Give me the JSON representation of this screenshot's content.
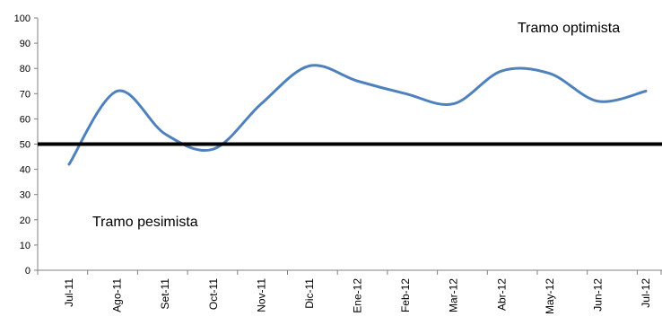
{
  "chart_data": {
    "type": "line",
    "title": "",
    "xlabel": "",
    "ylabel": "",
    "categories": [
      "Jul-11",
      "Ago-11",
      "Set-11",
      "Oct-11",
      "Nov-11",
      "Dic-11",
      "Ene-12",
      "Feb-12",
      "Mar-12",
      "Abr-12",
      "May-12",
      "Jun-12",
      "Jul-12"
    ],
    "series": [
      {
        "values": [
          42,
          71,
          54,
          48,
          66,
          81,
          75,
          70,
          66,
          79,
          78,
          67,
          71
        ],
        "color": "#4F81BD"
      }
    ],
    "ylim": [
      0,
      100
    ],
    "yticks": [
      0,
      10,
      20,
      30,
      40,
      50,
      60,
      70,
      80,
      90,
      100
    ],
    "reference_line": {
      "value": 50,
      "color": "#000000"
    },
    "grid": false,
    "legend": "none",
    "annotations": {
      "optimistic": "Tramo optimista",
      "pessimistic": "Tramo pesimista"
    }
  }
}
